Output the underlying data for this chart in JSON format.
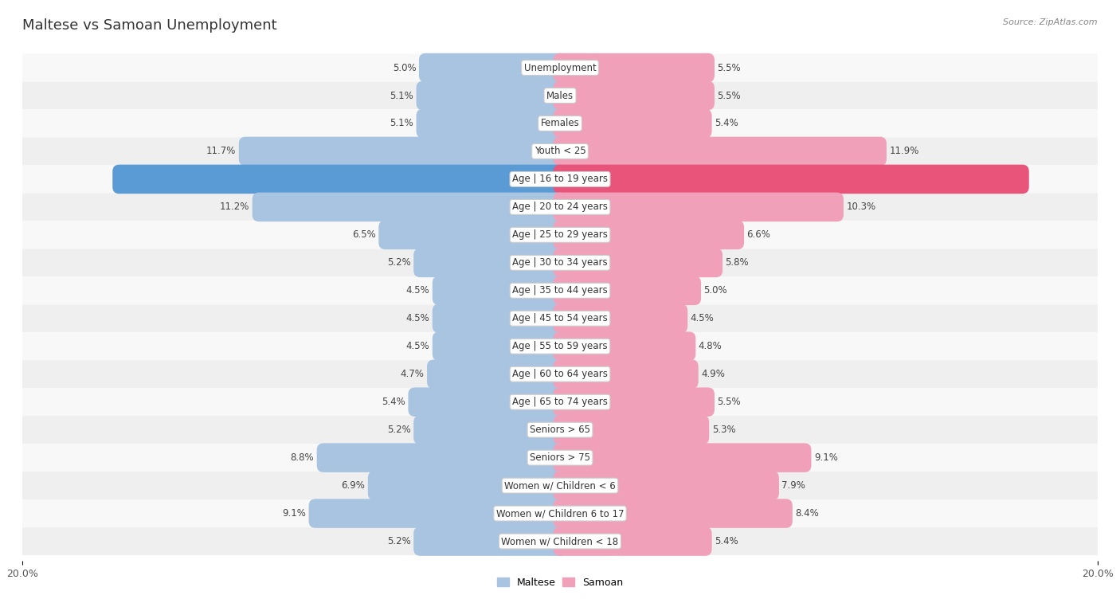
{
  "title": "Maltese vs Samoan Unemployment",
  "source": "Source: ZipAtlas.com",
  "categories": [
    "Unemployment",
    "Males",
    "Females",
    "Youth < 25",
    "Age | 16 to 19 years",
    "Age | 20 to 24 years",
    "Age | 25 to 29 years",
    "Age | 30 to 34 years",
    "Age | 35 to 44 years",
    "Age | 45 to 54 years",
    "Age | 55 to 59 years",
    "Age | 60 to 64 years",
    "Age | 65 to 74 years",
    "Seniors > 65",
    "Seniors > 75",
    "Women w/ Children < 6",
    "Women w/ Children 6 to 17",
    "Women w/ Children < 18"
  ],
  "maltese": [
    5.0,
    5.1,
    5.1,
    11.7,
    16.4,
    11.2,
    6.5,
    5.2,
    4.5,
    4.5,
    4.5,
    4.7,
    5.4,
    5.2,
    8.8,
    6.9,
    9.1,
    5.2
  ],
  "samoan": [
    5.5,
    5.5,
    5.4,
    11.9,
    17.2,
    10.3,
    6.6,
    5.8,
    5.0,
    4.5,
    4.8,
    4.9,
    5.5,
    5.3,
    9.1,
    7.9,
    8.4,
    5.4
  ],
  "maltese_color": "#a8c4e0",
  "samoan_color": "#f0a0b8",
  "highlight_maltese_color": "#5b9bd5",
  "highlight_samoan_color": "#e8547a",
  "row_bg_odd": "#efefef",
  "row_bg_even": "#f8f8f8",
  "axis_max": 20.0,
  "bar_height": 0.55,
  "legend_maltese": "Maltese",
  "legend_samoan": "Samoan",
  "highlight_indices": [
    4
  ]
}
